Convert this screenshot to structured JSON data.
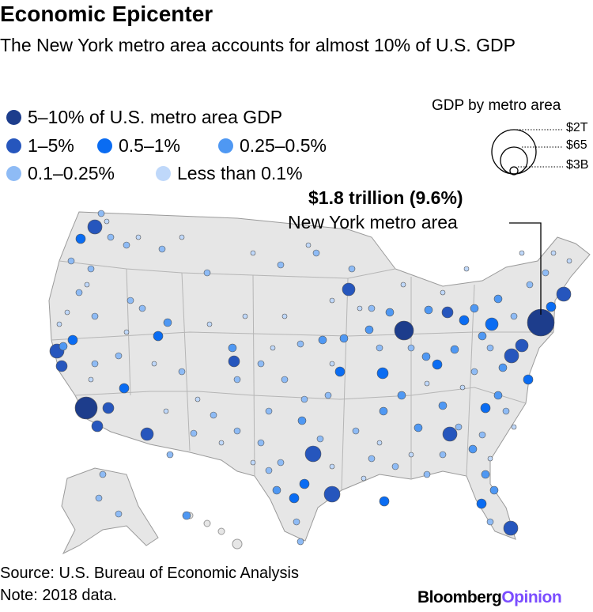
{
  "header": {
    "title": "Economic Epicenter",
    "subtitle": "The New York metro area accounts for almost 10% of U.S. GDP"
  },
  "legend": {
    "items": [
      {
        "label": "5–10% of U.S. metro area GDP",
        "color": "#1d3d8c"
      },
      {
        "label": "1–5%",
        "color": "#2656bd"
      },
      {
        "label": "0.5–1%",
        "color": "#0a6cf2"
      },
      {
        "label": "0.25–0.5%",
        "color": "#4f98f3"
      },
      {
        "label": "0.1–0.25%",
        "color": "#8ebbf5"
      },
      {
        "label": "Less than 0.1%",
        "color": "#bfd8fa"
      }
    ]
  },
  "size_legend": {
    "title": "GDP by metro area",
    "labels": [
      "$2T",
      "$65",
      "$3B"
    ]
  },
  "annotation": {
    "value": "$1.8 trillion (9.6%)",
    "label": "New York metro area"
  },
  "footer": {
    "source": "Source: U.S. Bureau of Economic Analysis",
    "note": "Note: 2018 data."
  },
  "branding": {
    "name": "Bloomberg",
    "suffix": "Opinion"
  }
}
